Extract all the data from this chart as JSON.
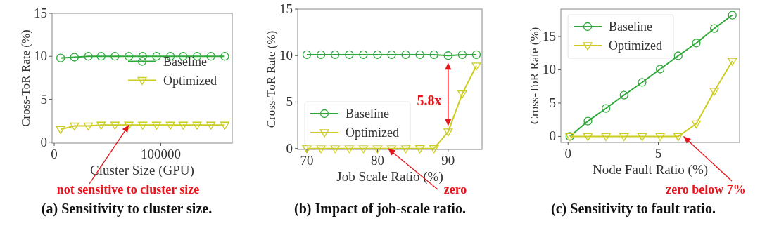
{
  "chart_data": [
    {
      "type": "line",
      "title": "(a) Sensitivity to cluster size.",
      "xlabel": "Cluster Size (GPU)",
      "ylabel": "Cross-ToR Rate (%)",
      "x": [
        6000,
        19000,
        32000,
        44000,
        57000,
        70000,
        83000,
        96000,
        109000,
        121000,
        134000,
        147000,
        160000
      ],
      "series": [
        {
          "name": "Baseline",
          "color": "#2ea83a",
          "marker": "circle",
          "values": [
            9.8,
            9.9,
            10.0,
            10.0,
            10.0,
            10.0,
            10.0,
            10.0,
            10.0,
            10.0,
            10.0,
            10.0,
            10.0
          ]
        },
        {
          "name": "Optimized",
          "color": "#cccc22",
          "marker": "triangle",
          "values": [
            1.5,
            1.9,
            1.9,
            2.0,
            2.0,
            2.0,
            2.0,
            2.0,
            2.0,
            2.0,
            2.0,
            2.0,
            2.0
          ]
        }
      ],
      "xlim": [
        -2000,
        167000
      ],
      "xticks": [
        0,
        100000
      ],
      "ylim": [
        -0.1,
        15
      ],
      "yticks": [
        0,
        5,
        10,
        15
      ],
      "grid": false,
      "legend": "right",
      "annotations": [
        {
          "text": "not sensitive to cluster size",
          "x": 70000,
          "y": 2.0
        }
      ]
    },
    {
      "type": "line",
      "title": "(b) Impact of job-scale ratio.",
      "xlabel": "Job Scale Ratio (%)",
      "ylabel": "Cross-ToR Rate (%)",
      "x": [
        70,
        72,
        74,
        76,
        78,
        80,
        82,
        84,
        86,
        88,
        90,
        92,
        94
      ],
      "series": [
        {
          "name": "Baseline",
          "color": "#2ea83a",
          "marker": "circle",
          "values": [
            10.1,
            10.1,
            10.1,
            10.1,
            10.1,
            10.1,
            10.1,
            10.1,
            10.1,
            10.1,
            10.0,
            10.1,
            10.1
          ]
        },
        {
          "name": "Optimized",
          "color": "#cccc22",
          "marker": "triangle",
          "values": [
            0,
            0,
            0,
            0,
            0,
            0,
            0,
            0,
            0,
            0,
            1.8,
            5.9,
            8.9
          ]
        }
      ],
      "xlim": [
        68.7,
        94.8
      ],
      "xticks": [
        70,
        80,
        90
      ],
      "ylim": [
        -0.1,
        15
      ],
      "yticks": [
        0,
        5,
        10,
        15
      ],
      "grid": false,
      "legend": "bottom left",
      "annotations": [
        "5.8x",
        {
          "text": "zero",
          "x": 81.5,
          "y": 0
        }
      ]
    },
    {
      "type": "line",
      "title": "(c) Sensitivity to fault ratio.",
      "xlabel": "Node Fault Ratio (%)",
      "ylabel": "Cross-ToR Rate (%)",
      "x": [
        0.1,
        1.1,
        2.1,
        3.1,
        4.1,
        5.1,
        6.1,
        7.1,
        8.1,
        9.1
      ],
      "series": [
        {
          "name": "Baseline",
          "color": "#2ea83a",
          "marker": "circle",
          "values": [
            0,
            2.3,
            4.2,
            6.2,
            8.1,
            10.1,
            12.1,
            14.0,
            16.2,
            18.2
          ]
        },
        {
          "name": "Optimized",
          "color": "#cccc22",
          "marker": "triangle",
          "values": [
            0,
            0,
            0,
            0,
            0,
            0,
            0,
            1.9,
            6.8,
            11.3
          ]
        }
      ],
      "xlim": [
        -0.4,
        9.5
      ],
      "xticks": [
        0,
        5
      ],
      "ylim": [
        -0.9,
        19.1
      ],
      "yticks": [
        0,
        5,
        10,
        15
      ],
      "grid": false,
      "legend": "top left",
      "annotations": [
        {
          "text": "zero below 7%",
          "x": 6.4,
          "y": 0
        }
      ]
    }
  ]
}
